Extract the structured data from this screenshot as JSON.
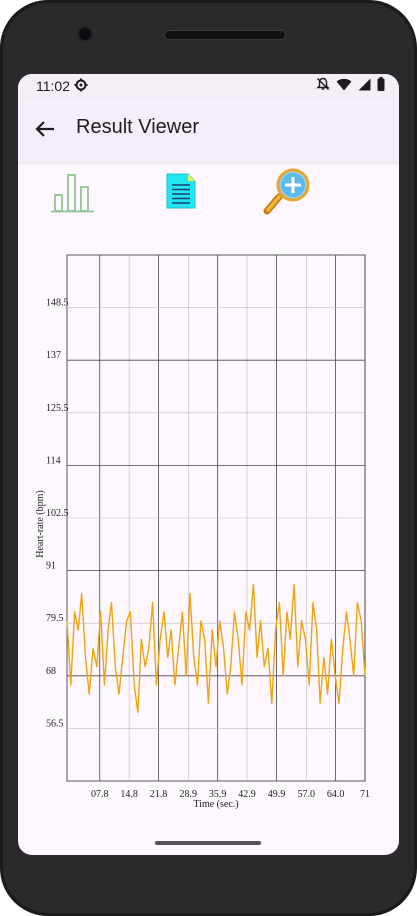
{
  "status": {
    "time": "11:02"
  },
  "appbar": {
    "title": "Result Viewer"
  },
  "toolbar": {
    "icons": [
      "bar-chart-icon",
      "document-icon",
      "zoom-in-icon"
    ]
  },
  "chart_data": {
    "type": "line",
    "xlabel": "Time (sec.)",
    "ylabel": "Heart-rate (bpm)",
    "xlim": [
      0,
      71
    ],
    "ylim": [
      45,
      160
    ],
    "x_ticks": [
      "07.8",
      "14.8",
      "21.8",
      "28.9",
      "35.9",
      "42.9",
      "49.9",
      "57.0",
      "64.0",
      "71"
    ],
    "x_tick_values": [
      7.8,
      14.8,
      21.8,
      28.9,
      35.9,
      42.9,
      49.9,
      57.0,
      64.0,
      71
    ],
    "y_ticks": [
      "56.5",
      "68",
      "79.5",
      "91",
      "102.5",
      "114",
      "125.5",
      "137",
      "148.5"
    ],
    "y_tick_values": [
      56.5,
      68,
      79.5,
      91,
      102.5,
      114,
      125.5,
      137,
      148.5
    ],
    "grid": true,
    "series": [
      {
        "color": "#f0a30a",
        "x": [
          0,
          0.9,
          1.8,
          2.7,
          3.5,
          4.4,
          5.3,
          6.2,
          7.1,
          8.0,
          8.9,
          9.8,
          10.6,
          11.5,
          12.4,
          13.3,
          14.2,
          15.1,
          16.0,
          16.9,
          17.7,
          18.6,
          19.5,
          20.4,
          21.3,
          22.2,
          23.1,
          24.0,
          24.8,
          25.7,
          26.6,
          27.5,
          28.4,
          29.3,
          30.2,
          31.1,
          31.9,
          32.8,
          33.7,
          34.6,
          35.5,
          36.4,
          37.3,
          38.2,
          39.0,
          39.9,
          40.8,
          41.7,
          42.6,
          43.5,
          44.4,
          45.3,
          46.1,
          47.0,
          47.9,
          48.8,
          49.7,
          50.6,
          51.5,
          52.4,
          53.2,
          54.1,
          55.0,
          55.9,
          56.8,
          57.7,
          58.6,
          59.5,
          60.3,
          61.2,
          62.1,
          63.0,
          63.9,
          64.8,
          65.7,
          66.6,
          67.4,
          68.3,
          69.2,
          70.1,
          71
        ],
        "y": [
          80,
          66,
          82,
          78,
          86,
          72,
          64,
          74,
          70,
          82,
          66,
          78,
          84,
          70,
          64,
          72,
          80,
          82,
          66,
          60,
          76,
          70,
          74,
          84,
          66,
          76,
          82,
          72,
          78,
          66,
          74,
          82,
          68,
          86,
          72,
          66,
          80,
          76,
          62,
          78,
          70,
          80,
          74,
          64,
          70,
          82,
          76,
          66,
          82,
          78,
          88,
          72,
          80,
          70,
          74,
          62,
          78,
          84,
          68,
          82,
          76,
          88,
          70,
          80,
          76,
          66,
          84,
          78,
          62,
          72,
          64,
          76,
          68,
          62,
          74,
          82,
          76,
          68,
          84,
          80,
          68
        ],
        "markers": false
      }
    ]
  }
}
